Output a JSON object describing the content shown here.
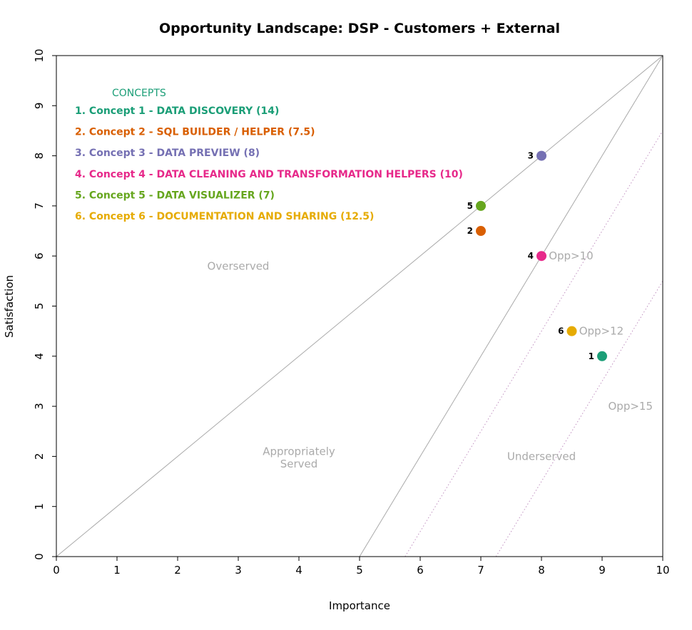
{
  "chart_data": {
    "type": "scatter",
    "title": "Opportunity Landscape: DSP - Customers + External",
    "xlabel": "Importance",
    "ylabel": "Satisfaction",
    "xlim": [
      0,
      10
    ],
    "ylim": [
      0,
      10
    ],
    "x_ticks": [
      "0",
      "1",
      "2",
      "3",
      "4",
      "5",
      "6",
      "7",
      "8",
      "9",
      "10"
    ],
    "y_ticks": [
      "0",
      "1",
      "2",
      "3",
      "4",
      "5",
      "6",
      "7",
      "8",
      "9",
      "10"
    ],
    "grid": false,
    "legend": {
      "title": "CONCEPTS",
      "title_color": "#1b9e77",
      "placement": "top-left",
      "entries": [
        {
          "label": "1. Concept 1 - DATA DISCOVERY (14)",
          "color": "#1b9e77"
        },
        {
          "label": "2. Concept 2 - SQL BUILDER / HELPER (7.5)",
          "color": "#d95f02"
        },
        {
          "label": "3. Concept 3 - DATA PREVIEW (8)",
          "color": "#7570b3"
        },
        {
          "label": "4. Concept 4 - DATA CLEANING AND TRANSFORMATION HELPERS (10)",
          "color": "#e7298a"
        },
        {
          "label": "5. Concept 5 - DATA VISUALIZER (7)",
          "color": "#66a61e"
        },
        {
          "label": "6. Concept 6 - DOCUMENTATION AND SHARING (12.5)",
          "color": "#e6ab02"
        }
      ]
    },
    "points": [
      {
        "label": "1",
        "x": 9,
        "y": 4,
        "color": "#1b9e77"
      },
      {
        "label": "2",
        "x": 7,
        "y": 6.5,
        "color": "#d95f02"
      },
      {
        "label": "3",
        "x": 8,
        "y": 8,
        "color": "#7570b3"
      },
      {
        "label": "4",
        "x": 8,
        "y": 6,
        "color": "#e7298a"
      },
      {
        "label": "5",
        "x": 7,
        "y": 7,
        "color": "#66a61e"
      },
      {
        "label": "6",
        "x": 8.5,
        "y": 4.5,
        "color": "#e6ab02"
      }
    ],
    "reference_lines": [
      {
        "x1": 0,
        "y1": 0,
        "x2": 10,
        "y2": 10,
        "style": "solid"
      },
      {
        "x1": 5,
        "y1": 0,
        "x2": 10,
        "y2": 10,
        "style": "solid"
      },
      {
        "x1": 5.75,
        "y1": 0,
        "x2": 10,
        "y2": 8.5,
        "style": "dotted"
      },
      {
        "x1": 7.25,
        "y1": 0,
        "x2": 10,
        "y2": 5.5,
        "style": "dotted"
      }
    ],
    "region_labels": [
      {
        "text": "Overserved",
        "x": 3,
        "y": 5.8
      },
      {
        "text": "Appropriately",
        "x": 4,
        "y": 2.1
      },
      {
        "text": "Served",
        "x": 4,
        "y": 1.85
      },
      {
        "text": "Underserved",
        "x": 8,
        "y": 2.0
      }
    ],
    "line_labels": [
      {
        "text": "Opp>10",
        "x": 8.12,
        "y": 6.0
      },
      {
        "text": "Opp>12",
        "x": 8.62,
        "y": 4.5
      },
      {
        "text": "Opp>15",
        "x": 9.1,
        "y": 3.0
      }
    ],
    "colors": {
      "reference_line": "#aaaaaa",
      "dotted_line": "#c090c0",
      "region_text": "#aaaaaa",
      "axis": "#000000"
    }
  }
}
